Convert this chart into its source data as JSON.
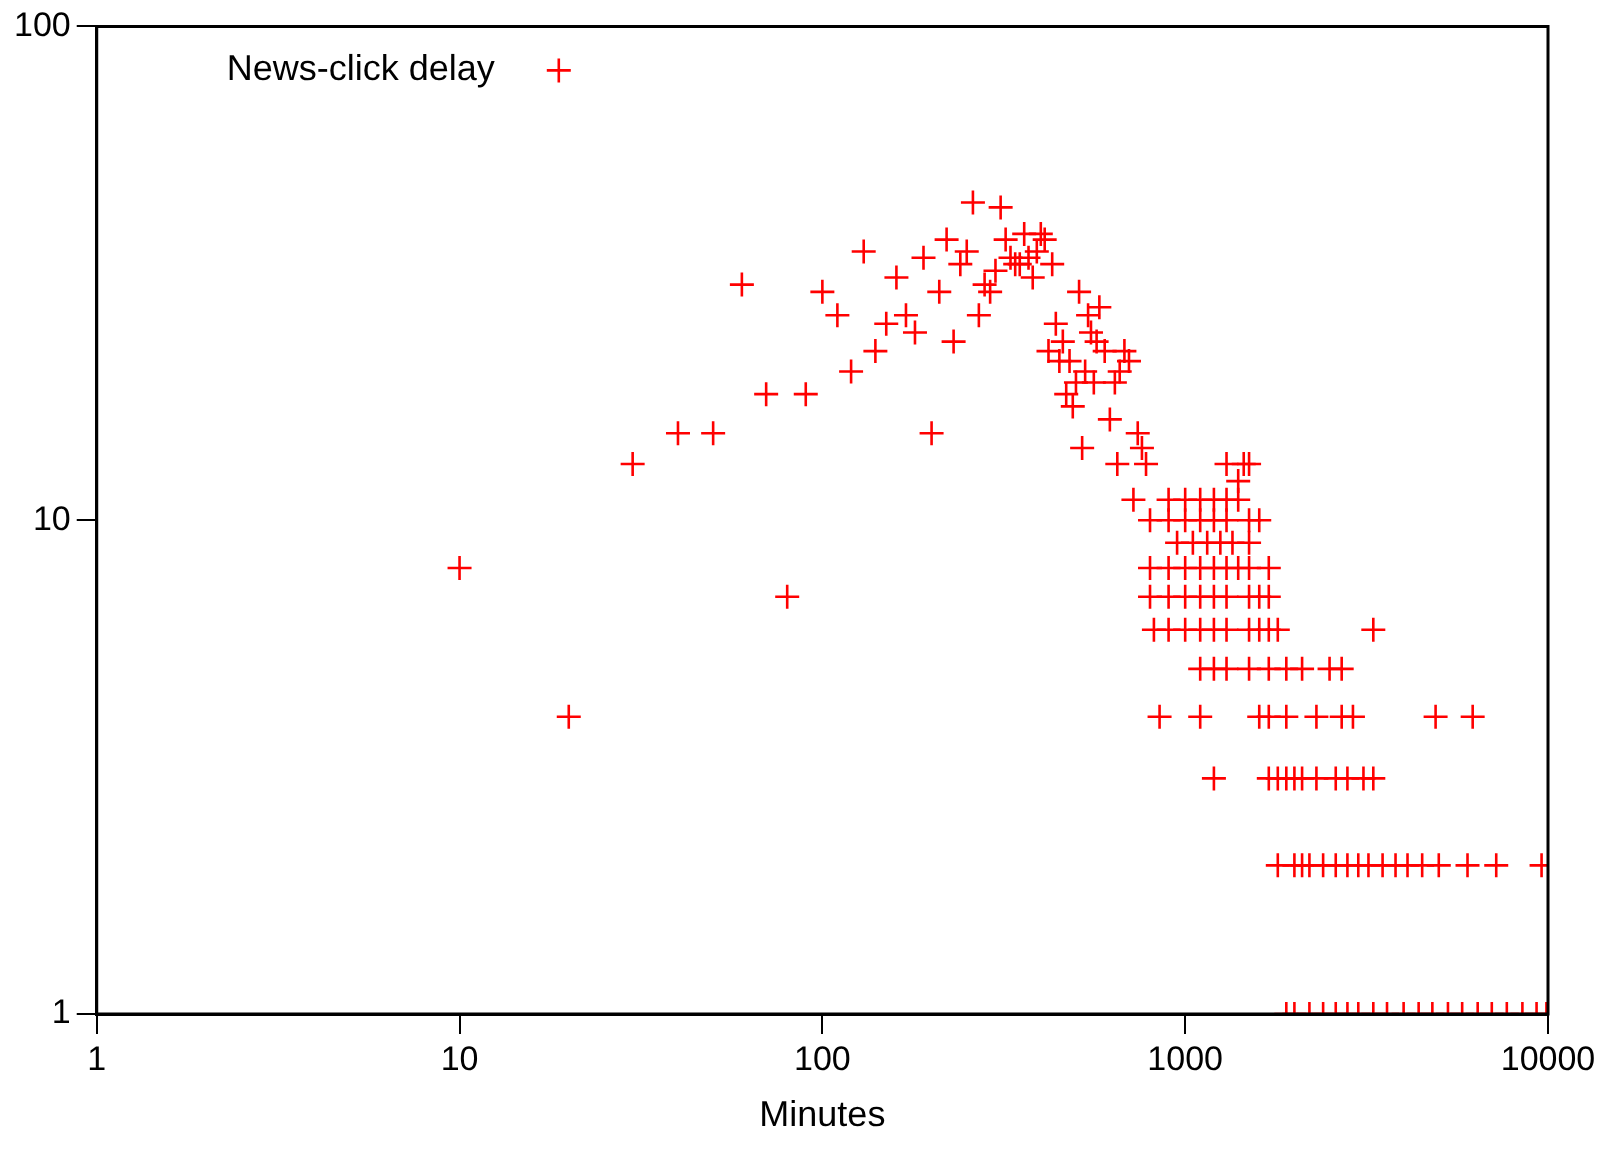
{
  "chart_data": {
    "type": "scatter",
    "xlabel": "Minutes",
    "log": "xy",
    "xlim": [
      1,
      10000
    ],
    "xticks": [
      1,
      10,
      100,
      1000,
      10000
    ],
    "ylim": [
      1,
      100
    ],
    "yticks": [
      1,
      10,
      100
    ],
    "grid": false,
    "legend": "top left",
    "marker": "cross",
    "series": [
      {
        "name": "News-click delay",
        "color": "#ff0000",
        "x": [
          10,
          20,
          30,
          40,
          50,
          60,
          70,
          80,
          90,
          100,
          110,
          120,
          130,
          140,
          150,
          160,
          170,
          180,
          190,
          200,
          210,
          220,
          230,
          240,
          250,
          260,
          270,
          280,
          290,
          300,
          310,
          320,
          330,
          340,
          350,
          360,
          370,
          380,
          390,
          400,
          410,
          420,
          430,
          440,
          450,
          460,
          470,
          480,
          490,
          500,
          510,
          520,
          530,
          540,
          550,
          560,
          570,
          580,
          600,
          620,
          640,
          650,
          660,
          680,
          700,
          720,
          740,
          760,
          780,
          1300,
          1400,
          1450,
          1500,
          900,
          1000,
          1100,
          1200,
          1300,
          1400,
          800,
          900,
          1000,
          1100,
          1200,
          1300,
          1500,
          1600,
          950,
          1050,
          1150,
          1250,
          1350,
          1500,
          800,
          900,
          1000,
          1100,
          1200,
          1300,
          1400,
          1500,
          1700,
          800,
          900,
          1000,
          1100,
          1200,
          1300,
          1500,
          1600,
          1700,
          820,
          900,
          1000,
          1100,
          1200,
          1300,
          1500,
          1600,
          1700,
          1800,
          3300,
          1100,
          1200,
          1300,
          1500,
          1700,
          1900,
          2100,
          2500,
          2700,
          850,
          1100,
          1600,
          1700,
          1900,
          2300,
          2700,
          2900,
          4900,
          6200,
          1200,
          1700,
          1800,
          1900,
          2000,
          2100,
          2300,
          2600,
          2800,
          3100,
          3300,
          1800,
          2000,
          2100,
          2200,
          2400,
          2600,
          2800,
          3000,
          3200,
          3500,
          3800,
          4100,
          4500,
          5000,
          6000,
          7200,
          9600,
          1900,
          2000,
          2200,
          2400,
          2600,
          2800,
          3000,
          3300,
          3600,
          4000,
          4400,
          4800,
          5300,
          5800,
          6400,
          7000,
          7700,
          8500,
          9300,
          9900
        ],
        "values": [
          8,
          4,
          13,
          15,
          15,
          30,
          18,
          7,
          18,
          29,
          26,
          20,
          35,
          22,
          25,
          31,
          26,
          24,
          34,
          15,
          29,
          37,
          23,
          33,
          35,
          44,
          26,
          30,
          29,
          32,
          43,
          37,
          34,
          33,
          33,
          38,
          34,
          31,
          35,
          38,
          37,
          22,
          33,
          25,
          21,
          23,
          18,
          21,
          17,
          19,
          29,
          14,
          20,
          26,
          24,
          19,
          23,
          27,
          22,
          16,
          19,
          13,
          20,
          22,
          21,
          11,
          15,
          14,
          13,
          13,
          12,
          13,
          13,
          11,
          11,
          11,
          11,
          11,
          11,
          10,
          10,
          10,
          10,
          10,
          10,
          10,
          10,
          9,
          9,
          9,
          9,
          9,
          9,
          8,
          8,
          8,
          8,
          8,
          8,
          8,
          8,
          8,
          7,
          7,
          7,
          7,
          7,
          7,
          7,
          7,
          7,
          6,
          6,
          6,
          6,
          6,
          6,
          6,
          6,
          6,
          6,
          6,
          5,
          5,
          5,
          5,
          5,
          5,
          5,
          5,
          5,
          4,
          4,
          4,
          4,
          4,
          4,
          4,
          4,
          4,
          4,
          3,
          3,
          3,
          3,
          3,
          3,
          3,
          3,
          3,
          3,
          3,
          2,
          2,
          2,
          2,
          2,
          2,
          2,
          2,
          2,
          2,
          2,
          2,
          2,
          2,
          2,
          2,
          2,
          1,
          1,
          1,
          1,
          1,
          1,
          1,
          1,
          1,
          1,
          1,
          1,
          1,
          1,
          1,
          1,
          1,
          1,
          1,
          1
        ]
      }
    ]
  }
}
